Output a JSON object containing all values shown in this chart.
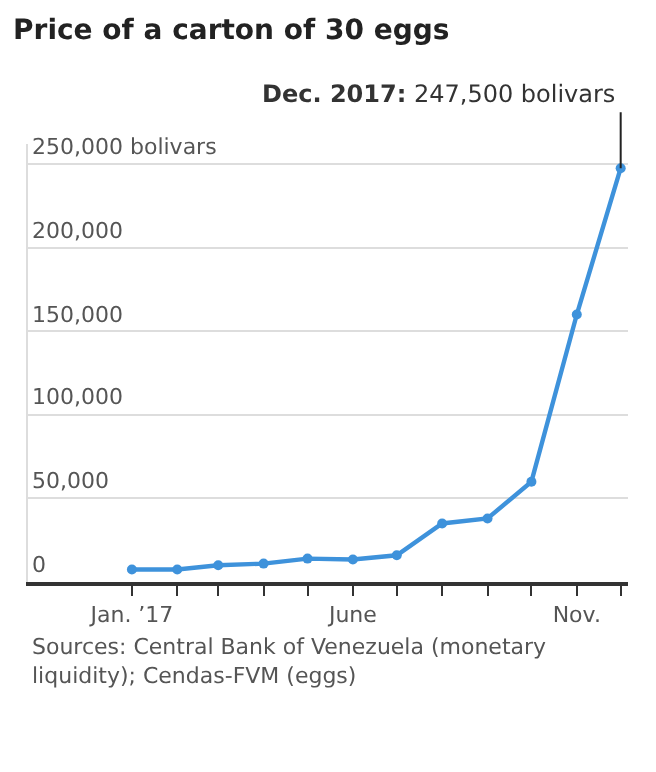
{
  "chart_data": {
    "type": "line",
    "title": "Price of a carton of 30 eggs",
    "x": [
      "2017-01",
      "2017-02",
      "2017-03",
      "2017-04",
      "2017-05",
      "2017-06",
      "2017-07",
      "2017-08",
      "2017-09",
      "2017-10",
      "2017-11",
      "2017-12"
    ],
    "series": [
      {
        "color": "#3e92db",
        "values": [
          7500,
          7500,
          10000,
          11000,
          14000,
          13500,
          16000,
          35000,
          38000,
          60000,
          160000,
          247500
        ]
      }
    ],
    "xlim": [
      "2016-10-22",
      "2017-12-06"
    ],
    "xticks": [
      {
        "value": "2017-01",
        "label": "Jan. ’17"
      },
      {
        "value": "2017-02",
        "label": null
      },
      {
        "value": "2017-03",
        "label": null
      },
      {
        "value": "2017-04",
        "label": null
      },
      {
        "value": "2017-05",
        "label": null
      },
      {
        "value": "2017-06",
        "label": "June"
      },
      {
        "value": "2017-07",
        "label": null
      },
      {
        "value": "2017-08",
        "label": null
      },
      {
        "value": "2017-09",
        "label": null
      },
      {
        "value": "2017-10",
        "label": null
      },
      {
        "value": "2017-11",
        "label": "Nov."
      },
      {
        "value": "2017-12",
        "label": null
      }
    ],
    "ylim": [
      0,
      262000
    ],
    "yticks": [
      {
        "value": 0,
        "label": "0"
      },
      {
        "value": 50000,
        "label": "50,000"
      },
      {
        "value": 100000,
        "label": "100,000"
      },
      {
        "value": 150000,
        "label": "150,000"
      },
      {
        "value": 200000,
        "label": "200,000"
      },
      {
        "value": 250000,
        "label": "250,000 bolivars"
      }
    ],
    "grid": "y",
    "marker": "circle",
    "line_style": "solid",
    "legend": false,
    "annotations": [
      {
        "text": "Dec. 2017: 247,500 bolivars",
        "x": "2017-12",
        "y": 247500
      },
      "Sources: Central Bank of Venezuela (monetary liquidity); Cendas-FVM (eggs)"
    ]
  }
}
